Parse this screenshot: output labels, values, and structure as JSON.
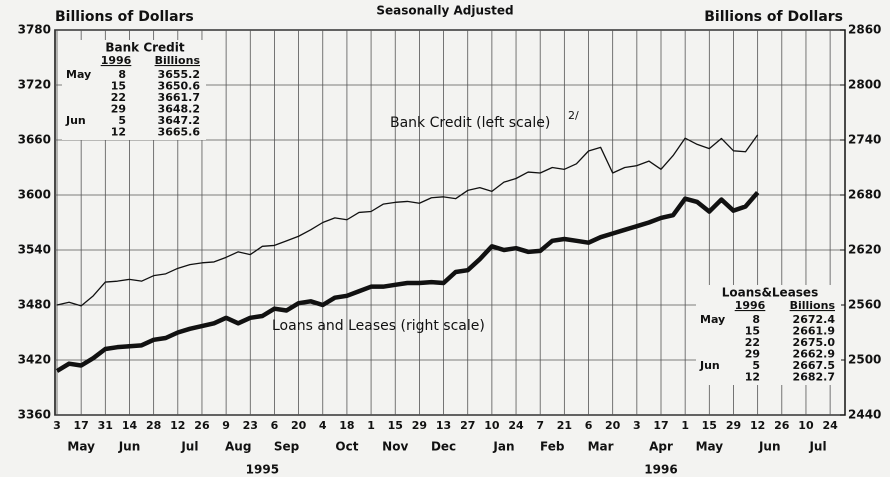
{
  "chart_data": {
    "type": "line",
    "title": "Seasonally Adjusted",
    "ylabel": "Billions of Dollars",
    "y2label": "Billions of Dollars",
    "categories": [
      "3",
      null,
      "17",
      null,
      "31",
      null,
      "14",
      null,
      "28",
      null,
      "12",
      null,
      "26",
      null,
      "9",
      null,
      "23",
      null,
      "6",
      null,
      "20",
      null,
      "4",
      null,
      "18",
      null,
      "1",
      null,
      "15",
      null,
      "29",
      null,
      "13",
      null,
      "27",
      null,
      "10",
      null,
      "24",
      null,
      "7",
      null,
      "21",
      null,
      "6",
      null,
      "20",
      null,
      "3",
      null,
      "17",
      null,
      "1",
      null,
      "15",
      null,
      "29",
      null,
      "12",
      null,
      "26",
      null,
      "10",
      null,
      "24"
    ],
    "months": [
      null,
      null,
      "May",
      null,
      null,
      null,
      "Jun",
      null,
      null,
      null,
      null,
      "Jul",
      null,
      null,
      null,
      "Aug",
      null,
      null,
      null,
      "Sep",
      null,
      null,
      null,
      null,
      "Oct",
      null,
      null,
      null,
      "Nov",
      null,
      null,
      null,
      "Dec",
      null,
      null,
      null,
      null,
      "Jan",
      null,
      null,
      null,
      "Feb",
      null,
      null,
      null,
      "Mar",
      null,
      null,
      null,
      null,
      "Apr",
      null,
      null,
      null,
      "May",
      null,
      null,
      null,
      null,
      "Jun",
      null,
      null,
      null,
      "Jul",
      null
    ],
    "years": [
      null,
      null,
      null,
      null,
      null,
      null,
      null,
      null,
      null,
      null,
      null,
      null,
      null,
      null,
      null,
      null,
      null,
      "1995",
      null,
      null,
      null,
      null,
      null,
      null,
      null,
      null,
      null,
      null,
      null,
      null,
      null,
      null,
      null,
      null,
      null,
      null,
      null,
      null,
      null,
      null,
      null,
      null,
      null,
      null,
      null,
      null,
      null,
      null,
      null,
      null,
      "1996",
      null,
      null,
      null,
      null,
      null,
      null,
      null,
      null,
      null,
      null,
      null,
      null,
      null,
      null
    ],
    "series": [
      {
        "name": "Bank Credit (left scale)",
        "footnote": "2/",
        "color": "#111111",
        "values": [
          3480,
          3483,
          3479,
          3490,
          3505,
          3506,
          3508,
          3506,
          3512,
          3514,
          3520,
          3524,
          3526,
          3527,
          3532,
          3538,
          3535,
          3544,
          3545,
          3550,
          3555,
          3562,
          3570,
          3575,
          3573,
          3581,
          3582,
          3590,
          3592,
          3593,
          3591,
          3597,
          3598,
          3596,
          3605,
          3608,
          3604,
          3614,
          3618,
          3625,
          3624,
          3630,
          3628,
          3634,
          3648,
          3652,
          3624,
          3630,
          3632,
          3637,
          3628,
          3643,
          3662,
          3655.2,
          3650.6,
          3661.7,
          3648.2,
          3647.2,
          3665.6,
          null,
          null,
          null,
          null,
          null,
          null
        ]
      },
      {
        "name": "Loans and Leases (right scale)",
        "color": "#111111",
        "axis": "y2",
        "values": [
          2488,
          2496,
          2494,
          2502,
          2512,
          2514,
          2515,
          2516,
          2522,
          2524,
          2530,
          2534,
          2537,
          2540,
          2546,
          2540,
          2546,
          2548,
          2556,
          2554,
          2562,
          2564,
          2560,
          2568,
          2570,
          2575,
          2580,
          2580,
          2582,
          2584,
          2584,
          2585,
          2584,
          2596,
          2598,
          2610,
          2624,
          2620,
          2622,
          2618,
          2619,
          2630,
          2632,
          2630,
          2628,
          2634,
          2638,
          2642,
          2646,
          2650,
          2655,
          2658,
          2676,
          2672.4,
          2661.9,
          2675.0,
          2662.9,
          2667.5,
          2682.7,
          null,
          null,
          null,
          null,
          null,
          null
        ]
      }
    ],
    "ylim": [
      3360,
      3780
    ],
    "yticks": [
      3360,
      3420,
      3480,
      3540,
      3600,
      3660,
      3720,
      3780
    ],
    "y2lim": [
      2440,
      2860
    ],
    "y2ticks": [
      2440,
      2500,
      2560,
      2620,
      2680,
      2740,
      2800,
      2860
    ],
    "grid": true,
    "tables": [
      {
        "title": "Bank Credit",
        "header": [
          "1996",
          "Billions"
        ],
        "rows": [
          [
            "May",
            "8",
            "3655.2"
          ],
          [
            null,
            "15",
            "3650.6"
          ],
          [
            null,
            "22",
            "3661.7"
          ],
          [
            null,
            "29",
            "3648.2"
          ],
          [
            "Jun",
            "5",
            "3647.2"
          ],
          [
            null,
            "12",
            "3665.6"
          ]
        ]
      },
      {
        "title": "Loans&Leases",
        "header": [
          "1996",
          "Billions"
        ],
        "rows": [
          [
            "May",
            "8",
            "2672.4"
          ],
          [
            null,
            "15",
            "2661.9"
          ],
          [
            null,
            "22",
            "2675.0"
          ],
          [
            null,
            "29",
            "2662.9"
          ],
          [
            "Jun",
            "5",
            "2667.5"
          ],
          [
            null,
            "12",
            "2682.7"
          ]
        ]
      }
    ]
  }
}
